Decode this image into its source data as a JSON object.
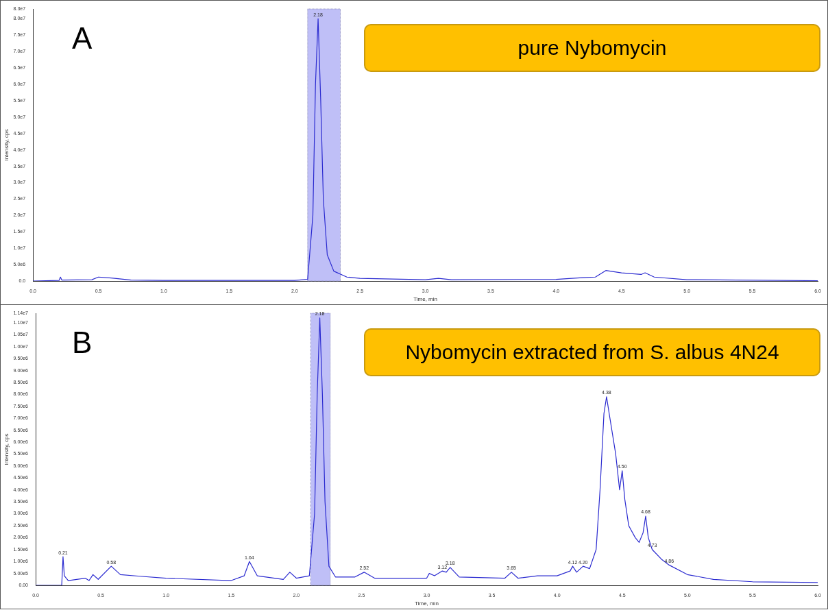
{
  "chart_data": [
    {
      "type": "line",
      "xlabel": "Time, min",
      "ylabel": "Intensity, cps",
      "legend": false,
      "grid": false,
      "marker": "none",
      "line_style": "solid",
      "annotations": [
        "A",
        "pure Nybomycin",
        {
          "text": "2.18",
          "x": 2.18,
          "y": 80000000
        }
      ],
      "xlim": [
        0,
        6
      ],
      "xticks": [
        {
          "value": 0,
          "label": "0.0"
        },
        {
          "value": 0.5,
          "label": "0.5"
        },
        {
          "value": 1,
          "label": "1.0"
        },
        {
          "value": 1.5,
          "label": "1.5"
        },
        {
          "value": 2,
          "label": "2.0"
        },
        {
          "value": 2.5,
          "label": "2.5"
        },
        {
          "value": 3,
          "label": "3.0"
        },
        {
          "value": 3.5,
          "label": "3.5"
        },
        {
          "value": 4,
          "label": "4.0"
        },
        {
          "value": 4.5,
          "label": "4.5"
        },
        {
          "value": 5,
          "label": "5.0"
        },
        {
          "value": 5.5,
          "label": "5.5"
        },
        {
          "value": 6,
          "label": "6.0"
        }
      ],
      "ylim": [
        0,
        83000000
      ],
      "yticks": [
        {
          "value": 0,
          "label": "0.0"
        },
        {
          "value": 5000000,
          "label": "5.0e6"
        },
        {
          "value": 10000000,
          "label": "1.0e7"
        },
        {
          "value": 15000000,
          "label": "1.5e7"
        },
        {
          "value": 20000000,
          "label": "2.0e7"
        },
        {
          "value": 25000000,
          "label": "2.5e7"
        },
        {
          "value": 30000000,
          "label": "3.0e7"
        },
        {
          "value": 35000000,
          "label": "3.5e7"
        },
        {
          "value": 40000000,
          "label": "4.0e7"
        },
        {
          "value": 45000000,
          "label": "4.5e7"
        },
        {
          "value": 50000000,
          "label": "5.0e7"
        },
        {
          "value": 55000000,
          "label": "5.5e7"
        },
        {
          "value": 60000000,
          "label": "6.0e7"
        },
        {
          "value": 65000000,
          "label": "6.5e7"
        },
        {
          "value": 70000000,
          "label": "7.0e7"
        },
        {
          "value": 75000000,
          "label": "7.5e7"
        },
        {
          "value": 80000000,
          "label": "8.0e7"
        },
        {
          "value": 83000000,
          "label": "8.3e7"
        }
      ],
      "bands": [
        {
          "axis": "x",
          "from": 2.1,
          "to": 2.35,
          "color": "#bfbff7"
        }
      ],
      "series": [
        {
          "color": "#2b2bd0",
          "x": [
            0,
            0.2,
            0.21,
            0.22,
            0.45,
            0.5,
            0.6,
            0.75,
            1.0,
            2.0,
            2.1,
            2.14,
            2.16,
            2.18,
            2.2,
            2.22,
            2.25,
            2.3,
            2.4,
            2.5,
            3.0,
            3.1,
            3.2,
            4.0,
            4.2,
            4.3,
            4.38,
            4.5,
            4.65,
            4.68,
            4.75,
            5.0,
            6.0
          ],
          "values": [
            0,
            200000,
            1200000,
            300000,
            400000,
            1200000,
            900000,
            300000,
            200000,
            200000,
            500000,
            20000000,
            60000000,
            80000000,
            55000000,
            25000000,
            8000000,
            3000000,
            1200000,
            800000,
            400000,
            800000,
            400000,
            500000,
            1000000,
            1200000,
            3200000,
            2500000,
            2000000,
            2500000,
            1200000,
            400000,
            100000
          ]
        }
      ]
    },
    {
      "type": "line",
      "xlabel": "Time, min",
      "ylabel": "Intensity, cps",
      "legend": false,
      "grid": false,
      "marker": "none",
      "line_style": "solid",
      "annotations": [
        "B",
        "Nybomycin extracted from S. albus 4N24",
        {
          "text": "0.21",
          "x": 0.21,
          "y": 1200000
        },
        {
          "text": "0.58",
          "x": 0.58,
          "y": 800000
        },
        {
          "text": "1.64",
          "x": 1.64,
          "y": 1000000
        },
        {
          "text": "2.18",
          "x": 2.18,
          "y": 11200000
        },
        {
          "text": "2.52",
          "x": 2.52,
          "y": 550000
        },
        {
          "text": "3.12",
          "x": 3.12,
          "y": 600000
        },
        {
          "text": "3.18",
          "x": 3.18,
          "y": 750000
        },
        {
          "text": "3.65",
          "x": 3.65,
          "y": 550000
        },
        {
          "text": "4.12",
          "x": 4.12,
          "y": 800000
        },
        {
          "text": "4.20",
          "x": 4.2,
          "y": 800000
        },
        {
          "text": "4.38",
          "x": 4.38,
          "y": 7900000
        },
        {
          "text": "4.50",
          "x": 4.5,
          "y": 4800000
        },
        {
          "text": "4.68",
          "x": 4.68,
          "y": 2900000
        },
        {
          "text": "4.73",
          "x": 4.73,
          "y": 1500000
        },
        {
          "text": "4.86",
          "x": 4.86,
          "y": 850000
        }
      ],
      "xlim": [
        0,
        6
      ],
      "xticks": [
        {
          "value": 0,
          "label": "0.0"
        },
        {
          "value": 0.5,
          "label": "0.5"
        },
        {
          "value": 1,
          "label": "1.0"
        },
        {
          "value": 1.5,
          "label": "1.5"
        },
        {
          "value": 2,
          "label": "2.0"
        },
        {
          "value": 2.5,
          "label": "2.5"
        },
        {
          "value": 3,
          "label": "3.0"
        },
        {
          "value": 3.5,
          "label": "3.5"
        },
        {
          "value": 4,
          "label": "4.0"
        },
        {
          "value": 4.5,
          "label": "4.5"
        },
        {
          "value": 5,
          "label": "5.0"
        },
        {
          "value": 5.5,
          "label": "5.5"
        },
        {
          "value": 6,
          "label": "6.0"
        }
      ],
      "ylim": [
        0,
        11400000
      ],
      "yticks": [
        {
          "value": 0,
          "label": "0.00"
        },
        {
          "value": 500000,
          "label": "5.00e5"
        },
        {
          "value": 1000000,
          "label": "1.00e6"
        },
        {
          "value": 1500000,
          "label": "1.50e6"
        },
        {
          "value": 2000000,
          "label": "2.00e6"
        },
        {
          "value": 2500000,
          "label": "2.50e6"
        },
        {
          "value": 3000000,
          "label": "3.00e6"
        },
        {
          "value": 3500000,
          "label": "3.50e6"
        },
        {
          "value": 4000000,
          "label": "4.00e6"
        },
        {
          "value": 4500000,
          "label": "4.50e6"
        },
        {
          "value": 5000000,
          "label": "5.00e6"
        },
        {
          "value": 5500000,
          "label": "5.50e6"
        },
        {
          "value": 6000000,
          "label": "6.00e6"
        },
        {
          "value": 6500000,
          "label": "6.50e6"
        },
        {
          "value": 7000000,
          "label": "7.00e6"
        },
        {
          "value": 7500000,
          "label": "7.50e6"
        },
        {
          "value": 8000000,
          "label": "8.00e6"
        },
        {
          "value": 8500000,
          "label": "8.50e6"
        },
        {
          "value": 9000000,
          "label": "9.00e6"
        },
        {
          "value": 9500000,
          "label": "9.50e6"
        },
        {
          "value": 10000000,
          "label": "1.00e7"
        },
        {
          "value": 10500000,
          "label": "1.05e7"
        },
        {
          "value": 11000000,
          "label": "1.10e7"
        },
        {
          "value": 11400000,
          "label": "1.14e7"
        }
      ],
      "bands": [
        {
          "axis": "x",
          "from": 2.11,
          "to": 2.26,
          "color": "#bfbff7"
        }
      ],
      "series": [
        {
          "color": "#2b2bd0",
          "x": [
            0,
            0.2,
            0.21,
            0.22,
            0.25,
            0.38,
            0.41,
            0.44,
            0.48,
            0.58,
            0.65,
            0.8,
            1.0,
            1.5,
            1.6,
            1.64,
            1.7,
            1.9,
            1.95,
            2.0,
            2.1,
            2.14,
            2.16,
            2.18,
            2.2,
            2.22,
            2.25,
            2.3,
            2.45,
            2.52,
            2.6,
            3.0,
            3.02,
            3.06,
            3.12,
            3.15,
            3.18,
            3.25,
            3.6,
            3.65,
            3.7,
            3.85,
            4.0,
            4.1,
            4.12,
            4.15,
            4.2,
            4.25,
            4.3,
            4.33,
            4.36,
            4.38,
            4.4,
            4.45,
            4.48,
            4.5,
            4.52,
            4.55,
            4.6,
            4.63,
            4.66,
            4.68,
            4.7,
            4.73,
            4.8,
            4.86,
            5.0,
            5.2,
            5.5,
            6.0
          ],
          "values": [
            0,
            0,
            1200000,
            400000,
            200000,
            300000,
            200000,
            450000,
            250000,
            800000,
            450000,
            380000,
            300000,
            200000,
            400000,
            1000000,
            400000,
            250000,
            550000,
            300000,
            400000,
            3000000,
            8000000,
            11200000,
            8000000,
            3500000,
            800000,
            350000,
            350000,
            550000,
            300000,
            300000,
            500000,
            400000,
            600000,
            550000,
            750000,
            350000,
            300000,
            550000,
            300000,
            400000,
            400000,
            600000,
            800000,
            550000,
            800000,
            700000,
            1500000,
            4000000,
            7200000,
            7900000,
            7200000,
            5500000,
            4000000,
            4800000,
            3600000,
            2500000,
            2000000,
            1800000,
            2200000,
            2900000,
            2000000,
            1500000,
            1100000,
            850000,
            450000,
            250000,
            150000,
            120000
          ]
        }
      ]
    }
  ]
}
